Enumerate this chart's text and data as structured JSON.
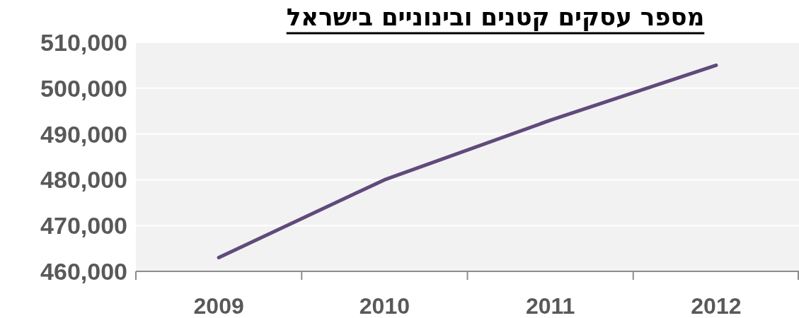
{
  "chart_data": {
    "type": "line",
    "title": "מספר עסקים קטנים ובינוניים בישראל",
    "categories": [
      "2009",
      "2010",
      "2011",
      "2012"
    ],
    "values": [
      463000,
      480000,
      493000,
      505000
    ],
    "color": "#604a7b",
    "ylim": [
      460000,
      510000
    ],
    "yticks": [
      {
        "value": 460000,
        "label": "460,000"
      },
      {
        "value": 470000,
        "label": "470,000"
      },
      {
        "value": 480000,
        "label": "480,000"
      },
      {
        "value": 490000,
        "label": "490,000"
      },
      {
        "value": 500000,
        "label": "500,000"
      },
      {
        "value": 510000,
        "label": "510,000"
      }
    ],
    "grid": "y"
  }
}
